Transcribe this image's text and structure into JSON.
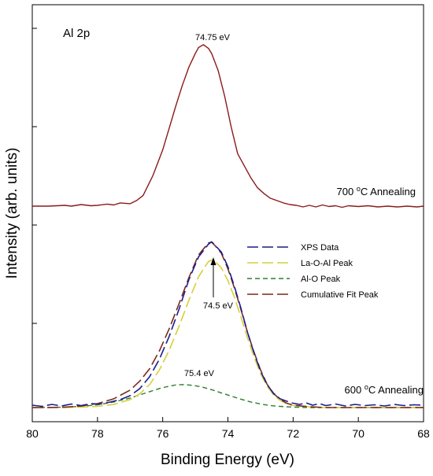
{
  "chart_data": {
    "type": "line",
    "xlabel": "Binding Energy (eV)",
    "ylabel": "Intensity (arb. units)",
    "xlim": [
      80,
      68
    ],
    "x_reversed": true,
    "x_ticks": [
      "80",
      "78",
      "76",
      "74",
      "72",
      "70",
      "68"
    ],
    "ylim": [
      0,
      1
    ],
    "y_tick_labels_shown": false,
    "grid": false,
    "panel_label": "Al 2p",
    "legend": {
      "placement": "center-right"
    },
    "annotations": {
      "peak_700": "74.75 eV",
      "peak_600": "74.5 eV",
      "peak_alo": "75.4 eV",
      "anneal_700_prefix": "700 ",
      "anneal_600_prefix": "600 ",
      "anneal_sup": "o",
      "anneal_suffix": "C Annealing"
    },
    "series": [
      {
        "name": "",
        "label": "700 °C Annealing",
        "color": "#8b1a1a",
        "style": "solid",
        "x": [
          80.0,
          79.5,
          79.0,
          78.8,
          78.5,
          78.2,
          78.0,
          77.7,
          77.5,
          77.3,
          77.0,
          76.8,
          76.6,
          76.3,
          76.0,
          75.8,
          75.6,
          75.4,
          75.2,
          75.0,
          74.9,
          74.75,
          74.6,
          74.5,
          74.3,
          74.1,
          73.9,
          73.7,
          73.5,
          73.3,
          73.1,
          72.9,
          72.7,
          72.5,
          72.3,
          72.1,
          71.9,
          71.7,
          71.5,
          71.3,
          71.1,
          70.9,
          70.7,
          70.5,
          70.3,
          70.0,
          69.7,
          69.4,
          69.1,
          68.8,
          68.5,
          68.2,
          68.0
        ],
        "y": [
          0.508,
          0.508,
          0.51,
          0.508,
          0.512,
          0.509,
          0.51,
          0.513,
          0.511,
          0.516,
          0.514,
          0.522,
          0.535,
          0.585,
          0.65,
          0.705,
          0.76,
          0.812,
          0.858,
          0.893,
          0.908,
          0.915,
          0.906,
          0.893,
          0.85,
          0.785,
          0.708,
          0.64,
          0.61,
          0.58,
          0.555,
          0.54,
          0.528,
          0.522,
          0.516,
          0.512,
          0.51,
          0.506,
          0.51,
          0.506,
          0.511,
          0.507,
          0.509,
          0.505,
          0.509,
          0.507,
          0.509,
          0.506,
          0.508,
          0.506,
          0.508,
          0.506,
          0.508
        ]
      },
      {
        "name": "XPS Data",
        "color": "#1c1c8c",
        "style": "long-dash",
        "x": [
          80.0,
          79.7,
          79.4,
          79.1,
          78.8,
          78.5,
          78.2,
          77.9,
          77.6,
          77.3,
          77.0,
          76.7,
          76.4,
          76.1,
          75.8,
          75.5,
          75.2,
          74.9,
          74.6,
          74.5,
          74.4,
          74.2,
          74.0,
          73.8,
          73.6,
          73.4,
          73.2,
          73.0,
          72.8,
          72.6,
          72.4,
          72.2,
          72.0,
          71.8,
          71.6,
          71.4,
          71.2,
          71.0,
          70.7,
          70.4,
          70.1,
          69.8,
          69.5,
          69.2,
          68.9,
          68.6,
          68.3,
          68.0
        ],
        "y": [
          0.006,
          0.003,
          0.008,
          0.004,
          0.009,
          0.005,
          0.01,
          0.009,
          0.014,
          0.02,
          0.03,
          0.048,
          0.078,
          0.122,
          0.18,
          0.248,
          0.322,
          0.38,
          0.412,
          0.418,
          0.41,
          0.392,
          0.355,
          0.305,
          0.25,
          0.19,
          0.138,
          0.092,
          0.058,
          0.036,
          0.022,
          0.016,
          0.011,
          0.008,
          0.012,
          0.006,
          0.01,
          0.005,
          0.009,
          0.004,
          0.008,
          0.005,
          0.007,
          0.004,
          0.008,
          0.005,
          0.007,
          0.006
        ]
      },
      {
        "name": "La-O-Al Peak",
        "color": "#d6cf3a",
        "style": "long-dash",
        "x": [
          80.0,
          79.5,
          79.0,
          78.5,
          78.0,
          77.5,
          77.0,
          76.7,
          76.4,
          76.1,
          75.8,
          75.5,
          75.2,
          74.9,
          74.6,
          74.5,
          74.4,
          74.2,
          74.0,
          73.8,
          73.6,
          73.4,
          73.2,
          73.0,
          72.8,
          72.6,
          72.4,
          72.2,
          72.0,
          71.5,
          71.0,
          70.5,
          70.0,
          69.0,
          68.0
        ],
        "y": [
          0.0,
          0.0,
          0.0,
          0.001,
          0.003,
          0.008,
          0.02,
          0.035,
          0.058,
          0.095,
          0.145,
          0.205,
          0.27,
          0.33,
          0.368,
          0.372,
          0.369,
          0.352,
          0.32,
          0.278,
          0.228,
          0.176,
          0.128,
          0.086,
          0.054,
          0.032,
          0.018,
          0.01,
          0.005,
          0.002,
          0.0,
          0.0,
          0.0,
          0.0,
          0.0
        ]
      },
      {
        "name": "Al-O Peak",
        "color": "#2e7d32",
        "style": "dash",
        "x": [
          80.0,
          79.0,
          78.5,
          78.0,
          77.5,
          77.0,
          76.7,
          76.4,
          76.1,
          75.8,
          75.6,
          75.4,
          75.2,
          75.0,
          74.8,
          74.5,
          74.2,
          73.9,
          73.6,
          73.3,
          73.0,
          72.7,
          72.4,
          72.0,
          71.5,
          71.0,
          70.0,
          69.0,
          68.0
        ],
        "y": [
          0.0,
          0.001,
          0.003,
          0.007,
          0.014,
          0.024,
          0.032,
          0.04,
          0.048,
          0.054,
          0.057,
          0.058,
          0.057,
          0.055,
          0.052,
          0.045,
          0.037,
          0.029,
          0.021,
          0.014,
          0.009,
          0.005,
          0.003,
          0.001,
          0.0,
          0.0,
          0.0,
          0.0,
          0.0
        ]
      },
      {
        "name": "Cumulative Fit Peak",
        "color": "#7a2a1a",
        "style": "long-dash",
        "x": [
          80.0,
          79.5,
          79.0,
          78.5,
          78.0,
          77.5,
          77.0,
          76.7,
          76.4,
          76.1,
          75.8,
          75.5,
          75.2,
          74.9,
          74.6,
          74.5,
          74.4,
          74.2,
          74.0,
          73.8,
          73.6,
          73.4,
          73.2,
          73.0,
          72.8,
          72.6,
          72.4,
          72.2,
          72.0,
          71.5,
          71.0,
          70.5,
          70.0,
          69.0,
          68.0
        ],
        "y": [
          0.0,
          0.0,
          0.001,
          0.004,
          0.01,
          0.022,
          0.044,
          0.067,
          0.098,
          0.143,
          0.199,
          0.262,
          0.327,
          0.385,
          0.415,
          0.417,
          0.409,
          0.389,
          0.35,
          0.301,
          0.247,
          0.19,
          0.14,
          0.095,
          0.059,
          0.035,
          0.021,
          0.011,
          0.006,
          0.002,
          0.0,
          0.0,
          0.0,
          0.0,
          0.0
        ]
      }
    ]
  }
}
